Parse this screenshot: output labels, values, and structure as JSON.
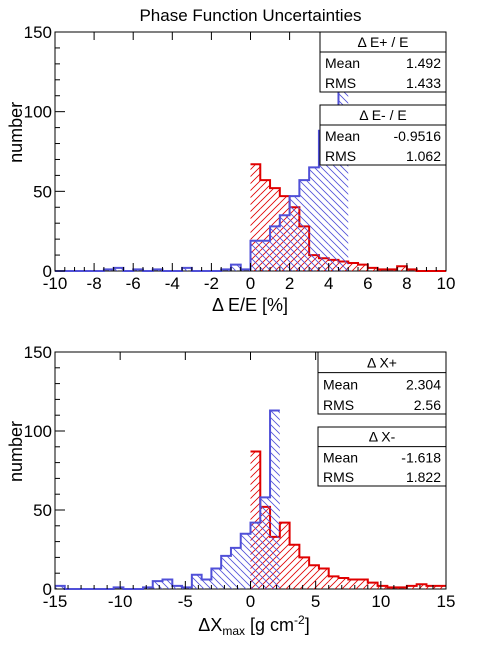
{
  "title": "Phase Function Uncertainties",
  "colors": {
    "positive": "#e00000",
    "negative": "#5050d8",
    "axis": "#000000",
    "background": "#ffffff"
  },
  "chart_data": [
    {
      "type": "histogram",
      "xlabel": "Δ E/E [%]",
      "ylabel": "number",
      "xlim": [
        -10,
        10
      ],
      "ylim": [
        0,
        150
      ],
      "x_ticks": [
        -10,
        -8,
        -6,
        -4,
        -2,
        0,
        2,
        4,
        6,
        8,
        10
      ],
      "y_ticks": [
        0,
        50,
        100,
        150
      ],
      "bin_width": 0.5,
      "series": [
        {
          "name": "Δ E+ / E",
          "color": "#e00000",
          "x_start": 0,
          "counts": [
            67,
            57,
            52,
            47,
            40,
            28,
            10,
            8,
            7,
            6,
            5,
            4,
            2,
            1,
            1,
            3,
            1,
            0,
            0,
            0
          ],
          "stats": {
            "mean_label": "Mean",
            "mean": "1.492",
            "rms_label": "RMS",
            "rms": "1.433"
          }
        },
        {
          "name": "Δ E- / E",
          "color": "#5050d8",
          "x_start": -10,
          "counts": [
            0,
            0,
            0,
            0,
            0,
            1,
            2,
            0,
            1,
            0,
            1,
            0,
            0,
            2,
            0,
            0,
            0,
            1,
            4,
            1,
            19,
            19,
            28,
            35,
            47,
            57,
            65,
            88,
            93,
            124
          ],
          "stats": {
            "mean_label": "Mean",
            "mean": "-0.9516",
            "rms_label": "RMS",
            "rms": "1.062"
          }
        }
      ]
    },
    {
      "type": "histogram",
      "xlabel_main": "ΔX",
      "xlabel_sub": "max",
      "xlabel_unit": " [g cm",
      "xlabel_sup": "-2",
      "xlabel_close": "]",
      "ylabel": "number",
      "xlim": [
        -15,
        15
      ],
      "ylim": [
        0,
        150
      ],
      "x_ticks": [
        -15,
        -10,
        -5,
        0,
        5,
        10,
        15
      ],
      "y_ticks": [
        0,
        50,
        100,
        150
      ],
      "bin_width": 0.75,
      "series": [
        {
          "name": "Δ X+",
          "color": "#e00000",
          "x_start": 0,
          "counts": [
            87,
            52,
            33,
            42,
            28,
            20,
            15,
            13,
            8,
            7,
            6,
            6,
            4,
            2,
            1,
            1,
            2,
            3,
            2,
            2
          ],
          "stats": {
            "mean_label": "Mean",
            "mean": "2.304",
            "rms_label": "RMS",
            "rms": "2.56"
          }
        },
        {
          "name": "Δ X-",
          "color": "#5050d8",
          "x_start": -15,
          "counts": [
            2,
            0,
            0,
            0,
            0,
            0,
            1,
            0,
            0,
            1,
            5,
            6,
            2,
            1,
            9,
            6,
            13,
            21,
            26,
            35,
            42,
            58,
            113
          ],
          "stats": {
            "mean_label": "Mean",
            "mean": "-1.618",
            "rms_label": "RMS",
            "rms": "1.822"
          }
        }
      ]
    }
  ]
}
